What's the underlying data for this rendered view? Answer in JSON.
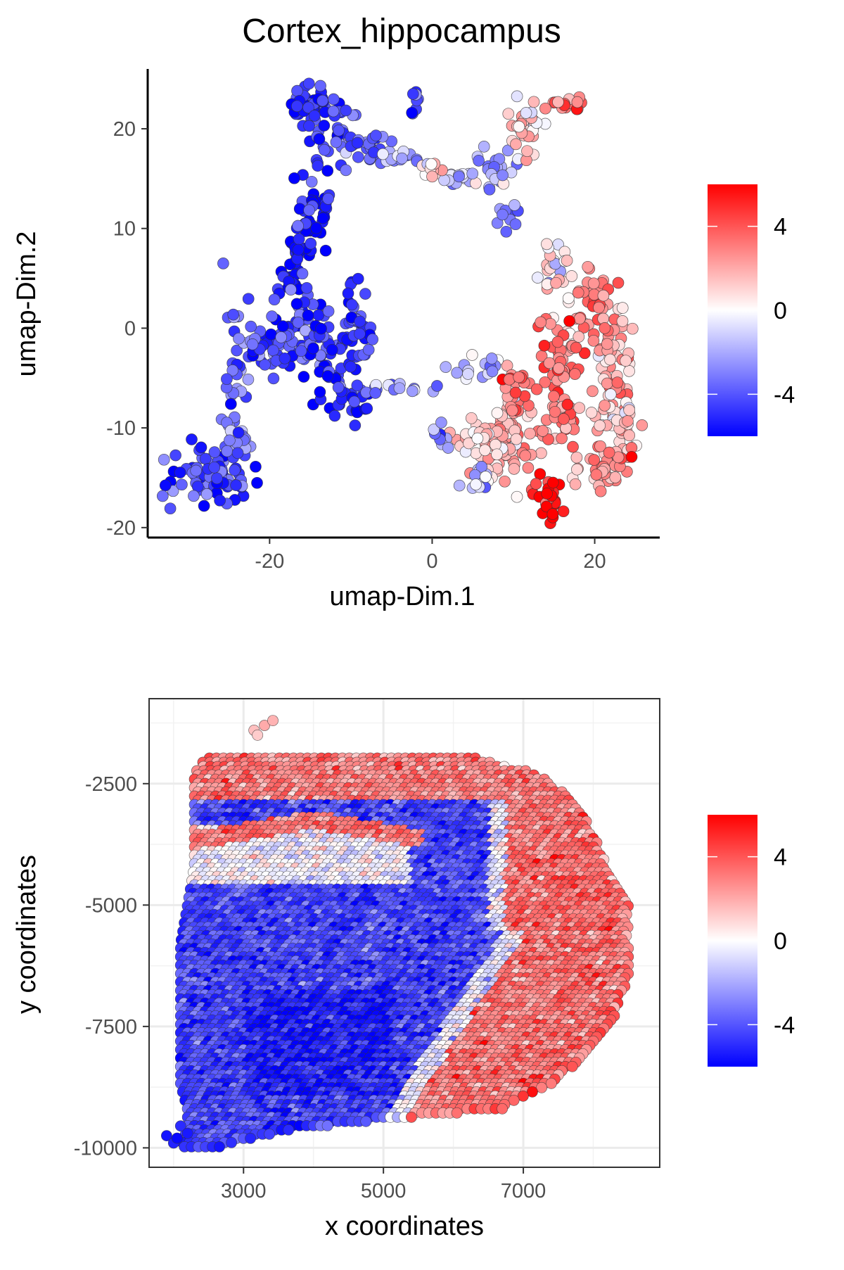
{
  "figure_title": "Cortex_hippocampus",
  "colors": {
    "low": "#0000ff",
    "mid": "#ffffff",
    "high": "#ff0000",
    "point_stroke": "#333333",
    "grid": "#ebebeb"
  },
  "chart_data": [
    {
      "type": "scatter",
      "title": "Cortex_hippocampus",
      "xlabel": "umap-Dim.1",
      "ylabel": "umap-Dim.2",
      "xlim": [
        -35,
        28
      ],
      "ylim": [
        -21,
        26
      ],
      "xticks": [
        -20,
        0,
        20
      ],
      "xtick_labels": [
        "-20",
        "0",
        "20"
      ],
      "yticks": [
        -20,
        -10,
        0,
        10,
        20
      ],
      "ytick_labels": [
        "-20",
        "-10",
        "0",
        "10",
        "20"
      ],
      "grid": false,
      "panel_border": false,
      "legend_position": "right",
      "legend_ticks": [
        4,
        0,
        -4
      ],
      "legend_tick_labels": [
        "4",
        "0",
        "-4"
      ],
      "color_range": [
        -6,
        6
      ],
      "colormap": "blue-white-red",
      "regions": [
        {
          "cx": -15,
          "cy": 22.5,
          "sx": 1.2,
          "sy": 1.2,
          "v": -5.2,
          "n": 40
        },
        {
          "cx": -12,
          "cy": 20,
          "sx": 1.8,
          "sy": 2.0,
          "v": -4.4,
          "n": 35
        },
        {
          "cx": -8,
          "cy": 18,
          "sx": 2.2,
          "sy": 1.0,
          "v": -3.5,
          "n": 25
        },
        {
          "cx": -4,
          "cy": 17,
          "sx": 1.5,
          "sy": 0.5,
          "v": -2.0,
          "n": 12
        },
        {
          "cx": -2,
          "cy": 23,
          "sx": 0.3,
          "sy": 0.9,
          "v": -4.0,
          "n": 8
        },
        {
          "cx": -14.5,
          "cy": 12,
          "sx": 1.0,
          "sy": 3.0,
          "v": -5.8,
          "n": 40
        },
        {
          "cx": -16.5,
          "cy": 6,
          "sx": 1.0,
          "sy": 2.5,
          "v": -5.6,
          "n": 40
        },
        {
          "cx": -16,
          "cy": 0,
          "sx": 2.3,
          "sy": 2.0,
          "v": -4.8,
          "n": 60
        },
        {
          "cx": -13,
          "cy": -3,
          "sx": 2.0,
          "sy": 2.0,
          "v": -4.9,
          "n": 50
        },
        {
          "cx": -9,
          "cy": 0,
          "sx": 1.3,
          "sy": 2.5,
          "v": -4.6,
          "n": 28
        },
        {
          "cx": -9.5,
          "cy": -7,
          "sx": 1.5,
          "sy": 1.0,
          "v": -4.8,
          "n": 25
        },
        {
          "cx": -4,
          "cy": -6,
          "sx": 2.2,
          "sy": 0.4,
          "v": -2.8,
          "n": 12
        },
        {
          "cx": -24.5,
          "cy": -4,
          "sx": 0.8,
          "sy": 3.5,
          "v": -3.5,
          "n": 30
        },
        {
          "cx": -20.5,
          "cy": -2,
          "sx": 1.5,
          "sy": 1.5,
          "v": -4.0,
          "n": 30
        },
        {
          "cx": -27,
          "cy": -15,
          "sx": 2.5,
          "sy": 1.6,
          "v": -4.6,
          "n": 85
        },
        {
          "cx": -24,
          "cy": -12,
          "sx": 1.0,
          "sy": 1.2,
          "v": -3.5,
          "n": 20
        },
        {
          "cx": 3,
          "cy": 15,
          "sx": 1.5,
          "sy": 0.4,
          "v": -1.2,
          "n": 18
        },
        {
          "cx": 0,
          "cy": 16,
          "sx": 1.0,
          "sy": 0.5,
          "v": 1.5,
          "n": 10
        },
        {
          "cx": 8,
          "cy": 16,
          "sx": 1.5,
          "sy": 1.0,
          "v": -2.5,
          "n": 20
        },
        {
          "cx": 9.5,
          "cy": 12,
          "sx": 0.6,
          "sy": 1.5,
          "v": -3.2,
          "n": 12
        },
        {
          "cx": 11.5,
          "cy": 20.5,
          "sx": 1.3,
          "sy": 1.6,
          "v": 1.0,
          "n": 30
        },
        {
          "cx": 16.5,
          "cy": 22.5,
          "sx": 1.4,
          "sy": 0.3,
          "v": 3.0,
          "n": 16
        },
        {
          "cx": 14.5,
          "cy": 6,
          "sx": 1.6,
          "sy": 1.8,
          "v": 0.6,
          "n": 25
        },
        {
          "cx": 20,
          "cy": 2,
          "sx": 1.4,
          "sy": 2.0,
          "v": 3.2,
          "n": 35
        },
        {
          "cx": 22.5,
          "cy": -3,
          "sx": 1.3,
          "sy": 3.0,
          "v": 2.4,
          "n": 45
        },
        {
          "cx": 23,
          "cy": -9,
          "sx": 1.3,
          "sy": 2.5,
          "v": 1.4,
          "n": 45
        },
        {
          "cx": 21,
          "cy": -14,
          "sx": 1.8,
          "sy": 1.3,
          "v": 3.0,
          "n": 40
        },
        {
          "cx": 16,
          "cy": -2,
          "sx": 1.2,
          "sy": 2.5,
          "v": 3.6,
          "n": 40
        },
        {
          "cx": 16,
          "cy": -8,
          "sx": 1.5,
          "sy": 2.0,
          "v": 2.6,
          "n": 40
        },
        {
          "cx": 14.5,
          "cy": -17,
          "sx": 1.0,
          "sy": 1.3,
          "v": 5.5,
          "n": 25
        },
        {
          "cx": 9,
          "cy": -11,
          "sx": 2.0,
          "sy": 2.0,
          "v": 2.2,
          "n": 75
        },
        {
          "cx": 10,
          "cy": -6,
          "sx": 1.0,
          "sy": 1.5,
          "v": 3.2,
          "n": 20
        },
        {
          "cx": 5,
          "cy": -11,
          "sx": 2.0,
          "sy": 1.0,
          "v": 1.2,
          "n": 25
        },
        {
          "cx": 6,
          "cy": -15,
          "sx": 1.0,
          "sy": 0.6,
          "v": -1.5,
          "n": 14
        },
        {
          "cx": 5,
          "cy": -4,
          "sx": 1.8,
          "sy": 0.8,
          "v": -1.8,
          "n": 15
        },
        {
          "cx": 1.5,
          "cy": -11,
          "sx": 0.8,
          "sy": 0.6,
          "v": -2.5,
          "n": 10
        }
      ]
    },
    {
      "type": "scatter",
      "title": "",
      "xlabel": "x coordinates",
      "ylabel": "y coordinates",
      "xlim": [
        1650,
        8950
      ],
      "ylim": [
        -10400,
        -750
      ],
      "xticks": [
        3000,
        5000,
        7000
      ],
      "xtick_labels": [
        "3000",
        "5000",
        "7000"
      ],
      "yticks": [
        -2500,
        -5000,
        -7500,
        -10000
      ],
      "ytick_labels": [
        "-2500",
        "-5000",
        "-7500",
        "-10000"
      ],
      "grid": true,
      "panel_border": true,
      "legend_position": "right",
      "legend_ticks": [
        4,
        0,
        -4
      ],
      "legend_tick_labels": [
        "4",
        "0",
        "-4"
      ],
      "color_range": [
        -6,
        6
      ],
      "colormap": "blue-white-red",
      "spot_spacing": 100,
      "tissue_rows": [
        [
          -1900,
          2500,
          6200
        ],
        [
          -2300,
          2300,
          7200
        ],
        [
          -2800,
          2300,
          7700
        ],
        [
          -3500,
          2300,
          8000
        ],
        [
          -4200,
          2300,
          8200
        ],
        [
          -5000,
          2200,
          8500
        ],
        [
          -5800,
          2100,
          8500
        ],
        [
          -6500,
          2100,
          8500
        ],
        [
          -7300,
          2100,
          8300
        ],
        [
          -8100,
          2100,
          7900
        ],
        [
          -8700,
          2100,
          7400
        ],
        [
          -9200,
          2200,
          6700
        ],
        [
          -9600,
          2200,
          3800
        ],
        [
          -10000,
          2100,
          2600
        ]
      ],
      "extra_points": [
        [
          3150,
          -1400,
          1.5
        ],
        [
          3300,
          -1300,
          2.0
        ],
        [
          3420,
          -1200,
          1.8
        ],
        [
          3200,
          -1500,
          1.2
        ],
        [
          1900,
          -9750,
          -5.5
        ],
        [
          2000,
          -9900,
          -5.2
        ],
        [
          2100,
          -9550,
          -5.0
        ],
        [
          2050,
          -9800,
          -5.8
        ],
        [
          2200,
          -9700,
          -5.4
        ]
      ]
    }
  ]
}
